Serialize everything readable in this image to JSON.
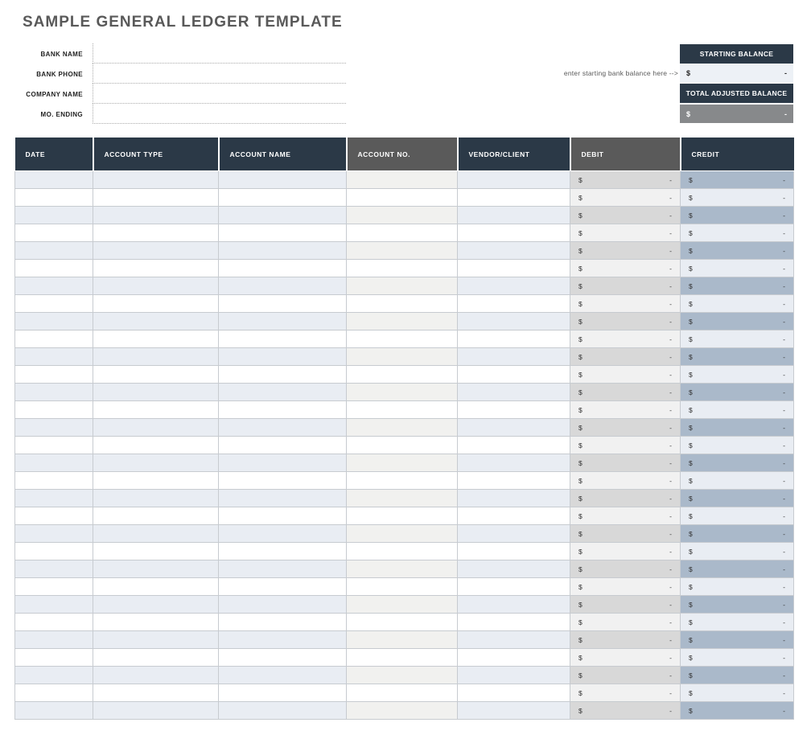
{
  "page": {
    "title": "SAMPLE GENERAL LEDGER TEMPLATE"
  },
  "form": {
    "fields": [
      {
        "label": "BANK NAME",
        "value": ""
      },
      {
        "label": "BANK PHONE",
        "value": ""
      },
      {
        "label": "COMPANY NAME",
        "value": ""
      },
      {
        "label": "MO. ENDING",
        "value": ""
      }
    ]
  },
  "balances": {
    "note": "enter starting bank balance here -->",
    "starting": {
      "label": "STARTING BALANCE",
      "currency": "$",
      "value": "-"
    },
    "total_adjusted": {
      "label": "TOTAL ADJUSTED BALANCE",
      "currency": "$",
      "value": "-"
    }
  },
  "table": {
    "columns": [
      {
        "label": "DATE",
        "style": "dark",
        "field": "date"
      },
      {
        "label": "ACCOUNT TYPE",
        "style": "dark",
        "field": "account-type"
      },
      {
        "label": "ACCOUNT NAME",
        "style": "dark",
        "field": "account-name"
      },
      {
        "label": "ACCOUNT NO.",
        "style": "gray",
        "field": "account-no"
      },
      {
        "label": "VENDOR/CLIENT",
        "style": "dark",
        "field": "vendor-client"
      },
      {
        "label": "DEBIT",
        "style": "gray",
        "field": "debit"
      },
      {
        "label": "CREDIT",
        "style": "dark",
        "field": "credit"
      }
    ],
    "row_count": 31,
    "money": {
      "currency": "$",
      "value": "-"
    },
    "cell_values": ""
  },
  "colors": {
    "header_navy": "#2b3947",
    "header_gray": "#5a5a5a",
    "row_shade_blue": "#e9edf3",
    "account_no_shade": "#f1f1ef",
    "debit_shade": "#d8d8d8",
    "debit_light": "#f1f1f1",
    "credit_shade": "#aab9ca",
    "credit_light": "#e9edf3",
    "total_row_gray": "#87898b",
    "starting_value_bg": "#edf1f6"
  }
}
